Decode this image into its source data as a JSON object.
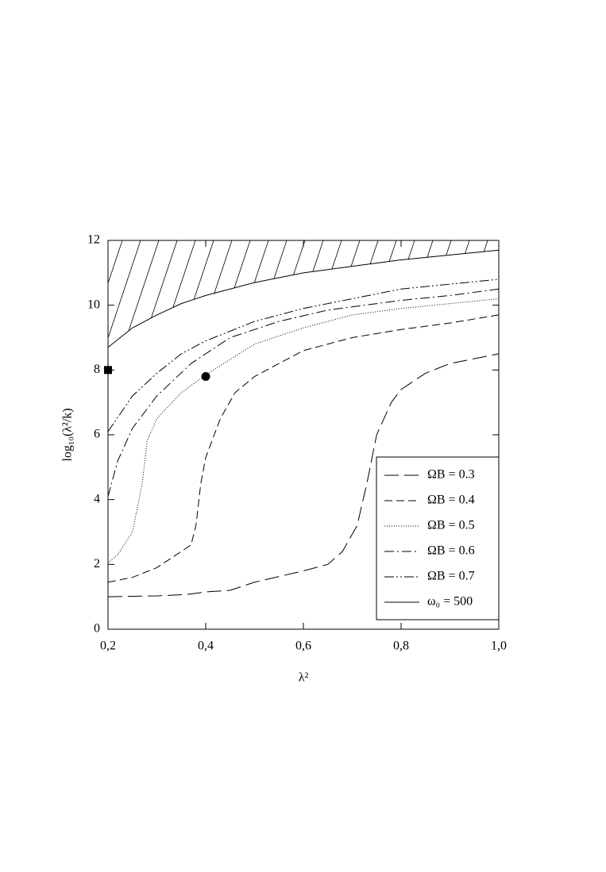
{
  "chart_data": {
    "type": "line",
    "xlabel": "λ²",
    "ylabel": "log₁₀(λ²/k)",
    "xlim": [
      0.2,
      1.0
    ],
    "ylim": [
      0,
      12
    ],
    "xticks": [
      {
        "value": 0.2,
        "label": "0,2"
      },
      {
        "value": 0.4,
        "label": "0,4"
      },
      {
        "value": 0.6,
        "label": "0,6"
      },
      {
        "value": 0.8,
        "label": "0,8"
      },
      {
        "value": 1.0,
        "label": "1,0"
      }
    ],
    "yticks": [
      0,
      2,
      4,
      6,
      8,
      10,
      12
    ],
    "legend": "lower right",
    "hatch_above": "ω₀ = 500",
    "series": [
      {
        "name": "ΩB = 0.3",
        "color": "#000000",
        "dash": "18 7",
        "x": [
          0.2,
          0.3,
          0.36,
          0.4,
          0.45,
          0.5,
          0.6,
          0.65,
          0.68,
          0.71,
          0.73,
          0.75,
          0.78,
          0.8,
          0.85,
          0.9,
          1.0
        ],
        "values": [
          1.0,
          1.03,
          1.07,
          1.15,
          1.2,
          1.45,
          1.8,
          2.0,
          2.4,
          3.2,
          4.5,
          6.0,
          7.0,
          7.4,
          7.9,
          8.2,
          8.5
        ]
      },
      {
        "name": "ΩB = 0.4",
        "color": "#000000",
        "dash": "10 5",
        "x": [
          0.2,
          0.25,
          0.3,
          0.35,
          0.37,
          0.38,
          0.39,
          0.4,
          0.43,
          0.46,
          0.5,
          0.6,
          0.7,
          0.8,
          0.9,
          1.0
        ],
        "values": [
          1.45,
          1.6,
          1.9,
          2.4,
          2.6,
          3.2,
          4.5,
          5.3,
          6.5,
          7.3,
          7.8,
          8.6,
          9.0,
          9.25,
          9.45,
          9.7
        ]
      },
      {
        "name": "ΩB = 0.5",
        "color": "#000000",
        "dash": "1 2",
        "x": [
          0.2,
          0.22,
          0.25,
          0.27,
          0.28,
          0.3,
          0.35,
          0.4,
          0.5,
          0.6,
          0.7,
          0.8,
          0.9,
          1.0
        ],
        "values": [
          2.05,
          2.3,
          3.0,
          4.5,
          5.8,
          6.5,
          7.3,
          7.85,
          8.8,
          9.3,
          9.7,
          9.9,
          10.05,
          10.2
        ]
      },
      {
        "name": "ΩB = 0.6",
        "color": "#000000",
        "dash": "12 4 2 4",
        "x": [
          0.2,
          0.22,
          0.25,
          0.3,
          0.37,
          0.45,
          0.55,
          0.65,
          0.8,
          0.9,
          1.0
        ],
        "values": [
          4.1,
          5.2,
          6.2,
          7.2,
          8.2,
          9.0,
          9.5,
          9.85,
          10.15,
          10.3,
          10.5
        ]
      },
      {
        "name": "ΩB = 0.7",
        "color": "#000000",
        "dash": "12 3 2 3 2 3",
        "x": [
          0.2,
          0.25,
          0.3,
          0.35,
          0.4,
          0.5,
          0.6,
          0.7,
          0.8,
          0.9,
          1.0
        ],
        "values": [
          6.1,
          7.2,
          7.9,
          8.5,
          8.9,
          9.5,
          9.9,
          10.2,
          10.5,
          10.65,
          10.8
        ]
      },
      {
        "name": "ω₀ = 500",
        "color": "#000000",
        "dash": "none",
        "x": [
          0.2,
          0.25,
          0.3,
          0.35,
          0.4,
          0.5,
          0.6,
          0.7,
          0.8,
          0.9,
          1.0
        ],
        "values": [
          8.7,
          9.3,
          9.7,
          10.05,
          10.3,
          10.7,
          11.0,
          11.2,
          11.4,
          11.55,
          11.7
        ]
      }
    ],
    "markers": [
      {
        "shape": "square",
        "x": 0.2,
        "y": 8.0
      },
      {
        "shape": "circle",
        "x": 0.4,
        "y": 7.8
      }
    ]
  }
}
